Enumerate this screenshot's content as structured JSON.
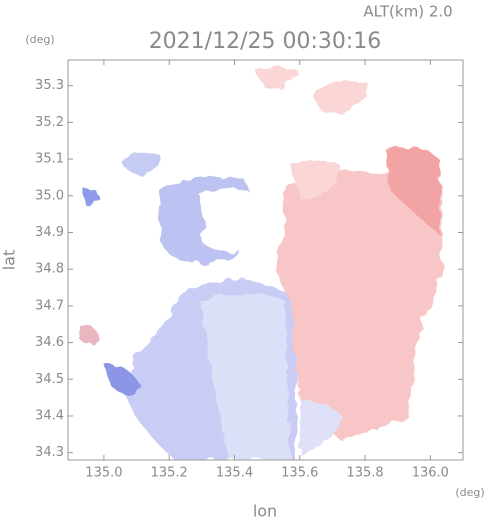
{
  "chart_data": {
    "type": "map",
    "title": "2021/12/25 00:30:16",
    "annotation": "ALT(km) 2.0",
    "xlabel": "lon",
    "ylabel": "lat",
    "x_unit": "(deg)",
    "y_unit": "(deg)",
    "xlim": [
      134.89,
      136.1
    ],
    "ylim": [
      34.28,
      35.37
    ],
    "xticks": [
      {
        "value": 135.0,
        "label": "135.0"
      },
      135.2,
      135.4,
      135.6,
      135.8,
      {
        "value": 136.0,
        "label": "136.0"
      }
    ],
    "yticks": [
      34.3,
      34.4,
      34.5,
      34.6,
      34.7,
      34.8,
      34.9,
      {
        "value": 35.0,
        "label": "35.0"
      },
      35.1,
      35.2,
      35.3
    ]
  }
}
